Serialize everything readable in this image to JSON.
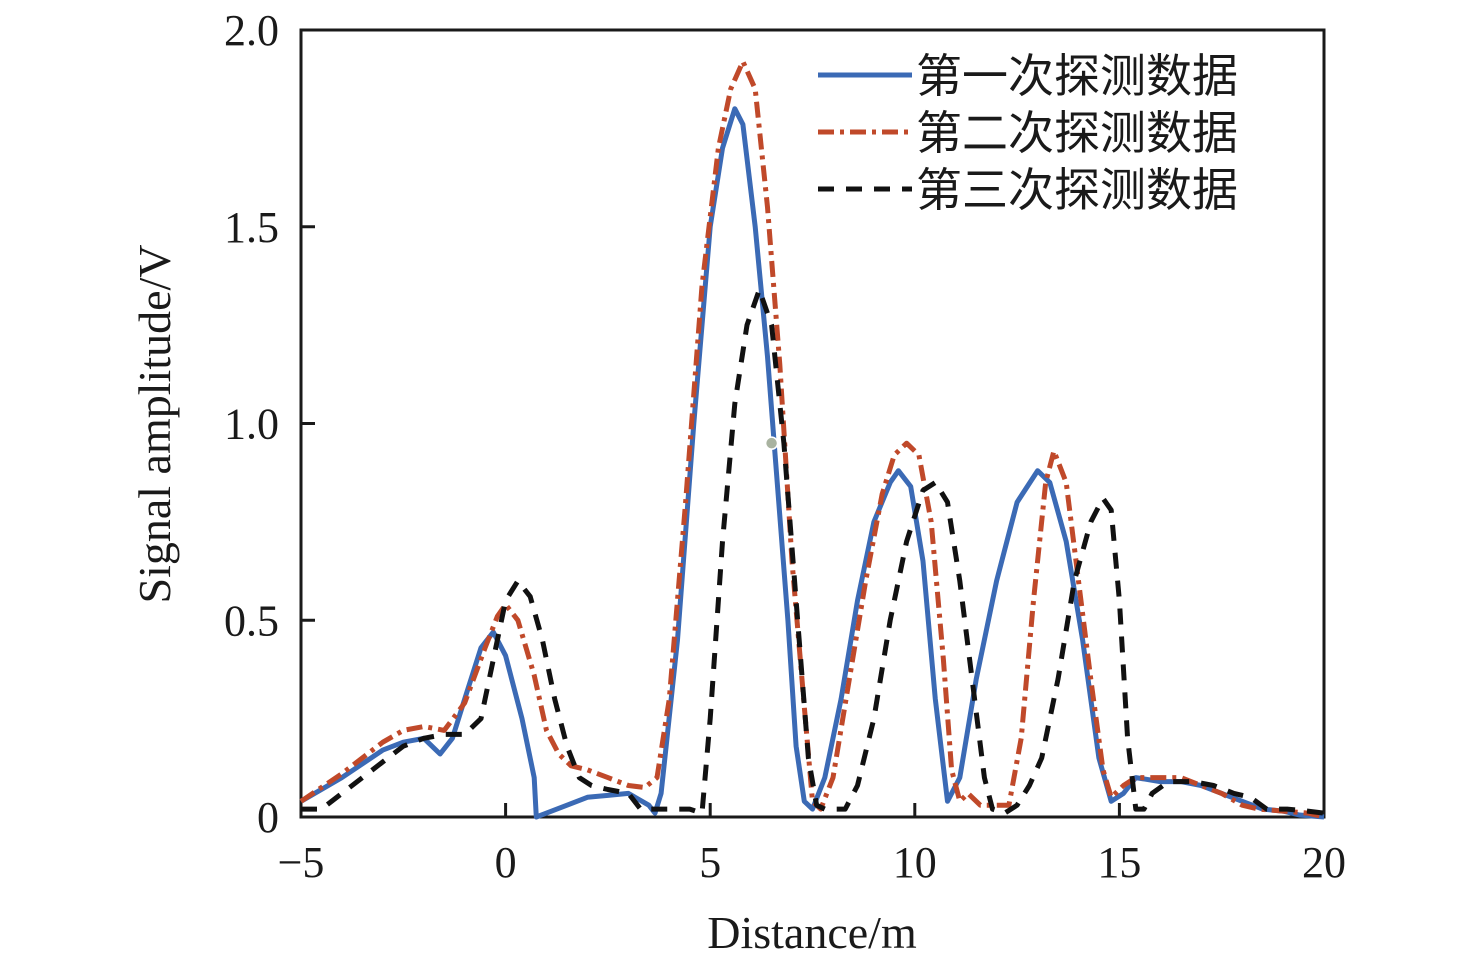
{
  "chart_data": {
    "type": "line",
    "title": "",
    "xlabel": "Distance/m",
    "ylabel": "Signal amplitude/V",
    "xlim": [
      -5,
      20
    ],
    "ylim": [
      0,
      2.0
    ],
    "x_ticks": [
      -5,
      0,
      5,
      10,
      15,
      20
    ],
    "x_tick_labels": [
      "−5",
      "0",
      "5",
      "10",
      "15",
      "20"
    ],
    "y_ticks": [
      0,
      0.5,
      1.0,
      1.5,
      2.0
    ],
    "y_tick_labels": [
      "0",
      "0.5",
      "1.0",
      "1.5",
      "2.0"
    ],
    "grid": false,
    "legend_position": "top-right",
    "series": [
      {
        "name": "第一次探测数据",
        "color": "#3b6ab5",
        "style": "solid",
        "points": [
          [
            -5,
            0.04
          ],
          [
            -4,
            0.1
          ],
          [
            -3,
            0.17
          ],
          [
            -2.5,
            0.19
          ],
          [
            -2,
            0.2
          ],
          [
            -1.6,
            0.16
          ],
          [
            -1.3,
            0.2
          ],
          [
            -1,
            0.3
          ],
          [
            -0.6,
            0.43
          ],
          [
            -0.3,
            0.47
          ],
          [
            0,
            0.41
          ],
          [
            0.4,
            0.25
          ],
          [
            0.7,
            0.1
          ],
          [
            0.75,
            0
          ],
          [
            1,
            0.01
          ],
          [
            1.5,
            0.03
          ],
          [
            2,
            0.05
          ],
          [
            2.5,
            0.055
          ],
          [
            3,
            0.06
          ],
          [
            3.5,
            0.03
          ],
          [
            3.65,
            0.01
          ],
          [
            3.8,
            0.06
          ],
          [
            4.2,
            0.45
          ],
          [
            4.6,
            1.0
          ],
          [
            5,
            1.5
          ],
          [
            5.3,
            1.7
          ],
          [
            5.6,
            1.8
          ],
          [
            5.8,
            1.76
          ],
          [
            6.1,
            1.5
          ],
          [
            6.4,
            1.17
          ],
          [
            6.6,
            0.9
          ],
          [
            6.9,
            0.5
          ],
          [
            7.1,
            0.18
          ],
          [
            7.3,
            0.04
          ],
          [
            7.5,
            0.02
          ],
          [
            7.8,
            0.1
          ],
          [
            8.2,
            0.3
          ],
          [
            8.6,
            0.55
          ],
          [
            9,
            0.75
          ],
          [
            9.4,
            0.85
          ],
          [
            9.6,
            0.88
          ],
          [
            9.9,
            0.84
          ],
          [
            10.2,
            0.65
          ],
          [
            10.5,
            0.3
          ],
          [
            10.8,
            0.04
          ],
          [
            11.1,
            0.1
          ],
          [
            11.5,
            0.35
          ],
          [
            12,
            0.6
          ],
          [
            12.5,
            0.8
          ],
          [
            13,
            0.88
          ],
          [
            13.3,
            0.85
          ],
          [
            13.7,
            0.7
          ],
          [
            14.1,
            0.45
          ],
          [
            14.5,
            0.15
          ],
          [
            14.8,
            0.04
          ],
          [
            15.1,
            0.06
          ],
          [
            15.4,
            0.1
          ],
          [
            16,
            0.09
          ],
          [
            16.5,
            0.09
          ],
          [
            17,
            0.08
          ],
          [
            17.5,
            0.06
          ],
          [
            18,
            0.04
          ],
          [
            18.5,
            0.02
          ],
          [
            19,
            0.015
          ],
          [
            19.4,
            0.005
          ],
          [
            20,
            0
          ]
        ]
      },
      {
        "name": "第二次探测数据",
        "color": "#c0492a",
        "style": "dashdot",
        "points": [
          [
            -5,
            0.04
          ],
          [
            -4,
            0.11
          ],
          [
            -3,
            0.19
          ],
          [
            -2.5,
            0.22
          ],
          [
            -2,
            0.23
          ],
          [
            -1.5,
            0.22
          ],
          [
            -1,
            0.29
          ],
          [
            -0.5,
            0.43
          ],
          [
            -0.2,
            0.51
          ],
          [
            0,
            0.54
          ],
          [
            0.3,
            0.5
          ],
          [
            0.7,
            0.36
          ],
          [
            1,
            0.22
          ],
          [
            1.3,
            0.16
          ],
          [
            1.6,
            0.13
          ],
          [
            2,
            0.12
          ],
          [
            2.5,
            0.1
          ],
          [
            3,
            0.08
          ],
          [
            3.4,
            0.075
          ],
          [
            3.7,
            0.1
          ],
          [
            4,
            0.3
          ],
          [
            4.4,
            0.8
          ],
          [
            4.8,
            1.35
          ],
          [
            5.2,
            1.7
          ],
          [
            5.5,
            1.85
          ],
          [
            5.8,
            1.92
          ],
          [
            6.1,
            1.85
          ],
          [
            6.4,
            1.55
          ],
          [
            6.7,
            1.15
          ],
          [
            7,
            0.65
          ],
          [
            7.3,
            0.28
          ],
          [
            7.5,
            0.04
          ],
          [
            7.7,
            0.02
          ],
          [
            8,
            0.1
          ],
          [
            8.4,
            0.35
          ],
          [
            8.8,
            0.6
          ],
          [
            9.2,
            0.82
          ],
          [
            9.5,
            0.92
          ],
          [
            9.8,
            0.95
          ],
          [
            10.1,
            0.92
          ],
          [
            10.4,
            0.75
          ],
          [
            10.7,
            0.4
          ],
          [
            10.9,
            0.12
          ],
          [
            11.1,
            0.04
          ],
          [
            11.3,
            0.06
          ],
          [
            11.6,
            0.03
          ],
          [
            12,
            0.03
          ],
          [
            12.3,
            0.03
          ],
          [
            12.6,
            0.2
          ],
          [
            12.9,
            0.55
          ],
          [
            13.2,
            0.85
          ],
          [
            13.4,
            0.93
          ],
          [
            13.7,
            0.85
          ],
          [
            14,
            0.6
          ],
          [
            14.3,
            0.35
          ],
          [
            14.6,
            0.12
          ],
          [
            14.8,
            0.05
          ],
          [
            15.1,
            0.08
          ],
          [
            15.4,
            0.1
          ],
          [
            16,
            0.1
          ],
          [
            16.5,
            0.1
          ],
          [
            17,
            0.08
          ],
          [
            17.5,
            0.06
          ],
          [
            18,
            0.03
          ],
          [
            18.4,
            0.02
          ],
          [
            19,
            0.015
          ],
          [
            19.6,
            0.01
          ],
          [
            20,
            0
          ]
        ]
      },
      {
        "name": "第三次探测数据",
        "color": "#111111",
        "style": "dashed",
        "points": [
          [
            -5,
            0.02
          ],
          [
            -4.5,
            0.02
          ],
          [
            -4,
            0.06
          ],
          [
            -3,
            0.14
          ],
          [
            -2.5,
            0.18
          ],
          [
            -2,
            0.2
          ],
          [
            -1.5,
            0.21
          ],
          [
            -1,
            0.21
          ],
          [
            -0.6,
            0.25
          ],
          [
            -0.3,
            0.4
          ],
          [
            0,
            0.55
          ],
          [
            0.3,
            0.6
          ],
          [
            0.6,
            0.56
          ],
          [
            0.9,
            0.45
          ],
          [
            1.2,
            0.3
          ],
          [
            1.5,
            0.18
          ],
          [
            1.8,
            0.1
          ],
          [
            2.1,
            0.08
          ],
          [
            2.5,
            0.07
          ],
          [
            3,
            0.06
          ],
          [
            3.3,
            0.02
          ],
          [
            3.6,
            0.02
          ],
          [
            4,
            0.02
          ],
          [
            4.5,
            0.02
          ],
          [
            4.8,
            0.01
          ],
          [
            5,
            0.25
          ],
          [
            5.3,
            0.7
          ],
          [
            5.6,
            1.05
          ],
          [
            5.9,
            1.25
          ],
          [
            6.2,
            1.34
          ],
          [
            6.5,
            1.25
          ],
          [
            6.8,
            0.95
          ],
          [
            7.1,
            0.55
          ],
          [
            7.4,
            0.15
          ],
          [
            7.6,
            0.03
          ],
          [
            7.8,
            0.02
          ],
          [
            8.1,
            0.02
          ],
          [
            8.3,
            0.02
          ],
          [
            8.6,
            0.08
          ],
          [
            9,
            0.25
          ],
          [
            9.4,
            0.5
          ],
          [
            9.8,
            0.7
          ],
          [
            10.2,
            0.83
          ],
          [
            10.5,
            0.85
          ],
          [
            10.8,
            0.8
          ],
          [
            11.1,
            0.6
          ],
          [
            11.4,
            0.35
          ],
          [
            11.7,
            0.1
          ],
          [
            11.9,
            0.02
          ],
          [
            12.2,
            0.01
          ],
          [
            12.5,
            0.03
          ],
          [
            12.8,
            0.08
          ],
          [
            13.1,
            0.15
          ],
          [
            13.5,
            0.35
          ],
          [
            13.9,
            0.6
          ],
          [
            14.3,
            0.75
          ],
          [
            14.6,
            0.81
          ],
          [
            14.8,
            0.78
          ],
          [
            15,
            0.55
          ],
          [
            15.2,
            0.2
          ],
          [
            15.4,
            0.02
          ],
          [
            15.6,
            0.02
          ],
          [
            15.8,
            0.06
          ],
          [
            16.2,
            0.09
          ],
          [
            16.8,
            0.09
          ],
          [
            17.3,
            0.08
          ],
          [
            17.8,
            0.06
          ],
          [
            18.2,
            0.05
          ],
          [
            18.6,
            0.02
          ],
          [
            19.1,
            0.02
          ],
          [
            19.6,
            0.015
          ],
          [
            20,
            0.01
          ]
        ]
      }
    ],
    "marker": {
      "x": 6.5,
      "y": 0.95,
      "color": "#a9b3a0"
    }
  }
}
